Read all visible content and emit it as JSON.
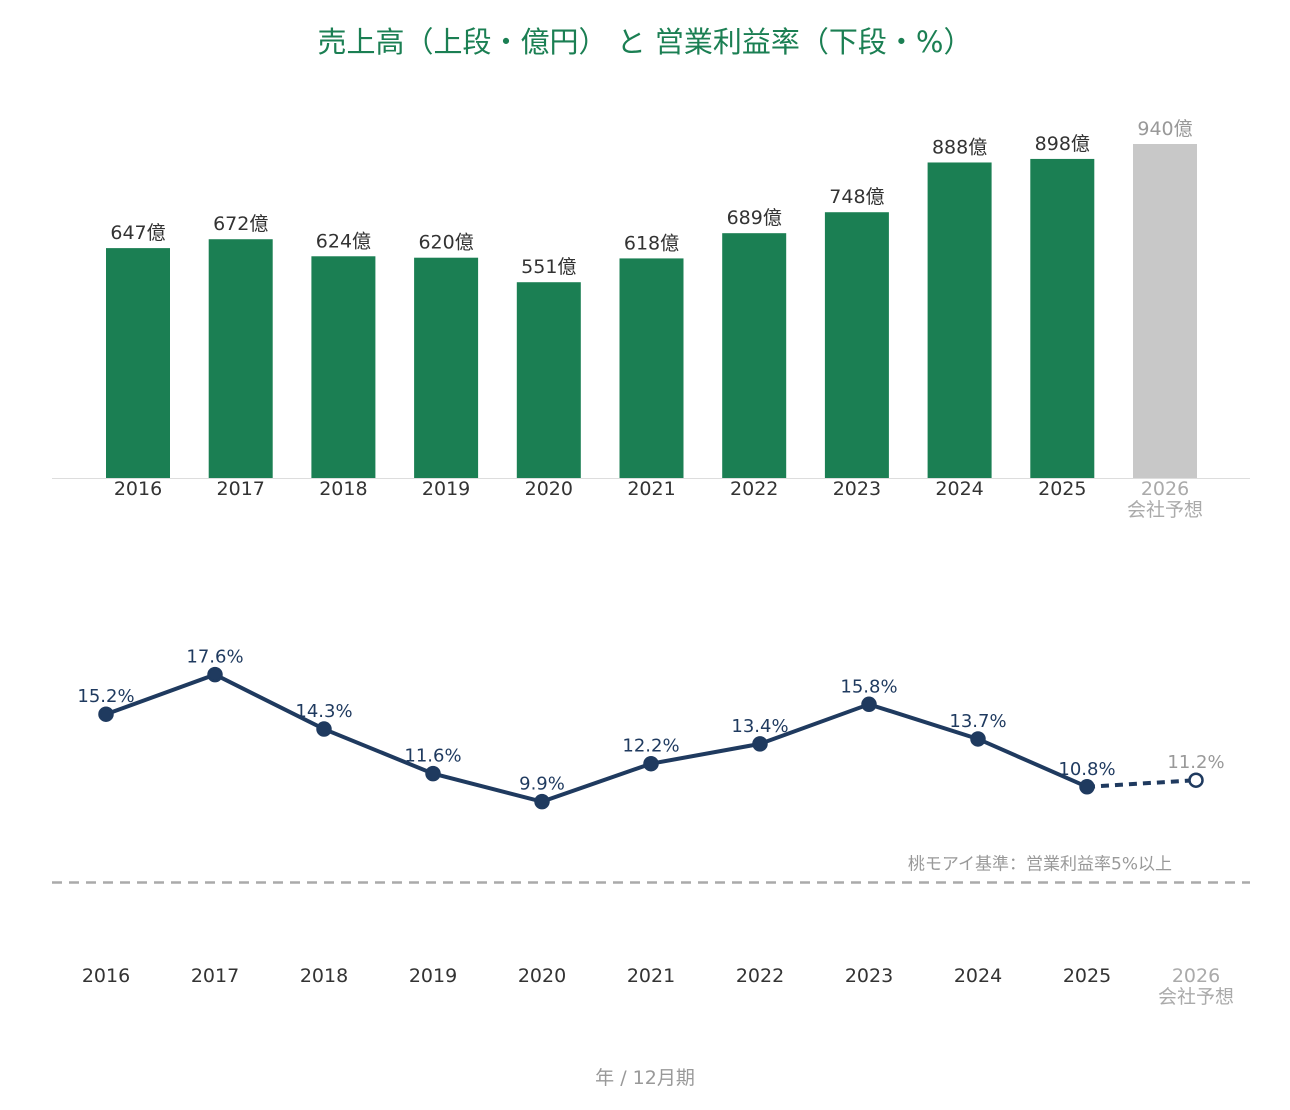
{
  "chart_data": [
    {
      "type": "bar",
      "title": "売上高（上段・億円） と 営業利益率（下段・%）",
      "categories": [
        "2016",
        "2017",
        "2018",
        "2019",
        "2020",
        "2021",
        "2022",
        "2023",
        "2024",
        "2025",
        "2026"
      ],
      "values": [
        647,
        672,
        624,
        620,
        551,
        618,
        689,
        748,
        888,
        898,
        940
      ],
      "value_labels": [
        "647億",
        "672億",
        "624億",
        "620億",
        "551億",
        "618億",
        "689億",
        "748億",
        "888億",
        "898億",
        "940億"
      ],
      "color": "#1b7f53",
      "forecast_color": "#c8c8c8",
      "forecast_note": "会社予想"
    },
    {
      "type": "line",
      "categories": [
        "2016",
        "2017",
        "2018",
        "2019",
        "2020",
        "2021",
        "2022",
        "2023",
        "2024",
        "2025",
        "2026"
      ],
      "values": [
        15.2,
        17.6,
        14.3,
        11.6,
        9.9,
        12.2,
        13.4,
        15.8,
        13.7,
        10.8,
        11.2
      ],
      "value_labels": [
        "15.2%",
        "17.6%",
        "14.3%",
        "11.6%",
        "9.9%",
        "12.2%",
        "13.4%",
        "15.8%",
        "13.7%",
        "10.8%",
        "11.2%"
      ],
      "color": "#1f3a5f",
      "forecast_color": "#999999",
      "forecast_note": "会社予想",
      "reference": {
        "value": 5,
        "label": "桃モアイ基準：営業利益率5%以上"
      },
      "xlabel": "年 / 12月期"
    }
  ]
}
